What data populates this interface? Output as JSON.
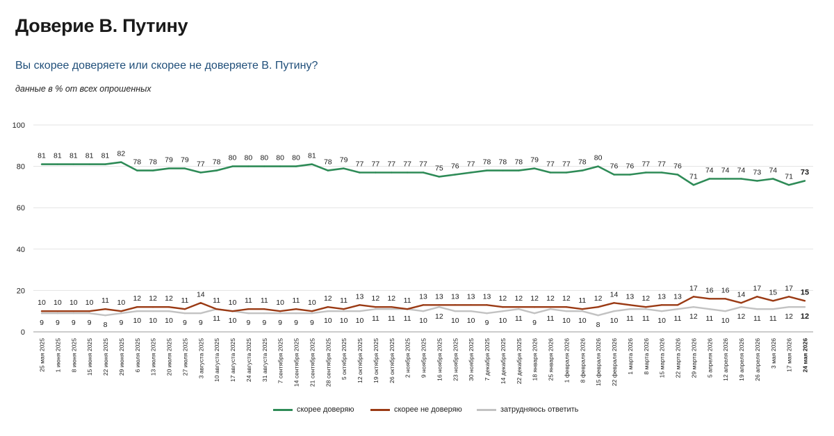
{
  "header": {
    "title": "Доверие В. Путину",
    "subtitle": "Вы скорее доверяете или скорее не доверяете В. Путину?",
    "note": "данные в % от всех опрошенных"
  },
  "colors": {
    "trust": "#2e8b57",
    "distrust": "#9a3a14",
    "undecided": "#c2c2c2"
  },
  "legend": {
    "trust": "скорее доверяю",
    "distrust": "скорее не доверяю",
    "undecided": "затрудняюсь ответить"
  },
  "chart_data": {
    "type": "line",
    "ylim": [
      0,
      100
    ],
    "yticks": [
      0,
      20,
      40,
      60,
      80,
      100
    ],
    "grid": true,
    "legend_position": "bottom",
    "categories": [
      "25 мая 2025",
      "1 июня 2025",
      "8 июня 2025",
      "15 июня 2025",
      "22 июня 2025",
      "29 июня 2025",
      "6 июля 2025",
      "13 июля 2025",
      "20 июля 2025",
      "27 июля 2025",
      "3 августа 2025",
      "10 августа 2025",
      "17 августа 2025",
      "24 августа 2025",
      "31 августа 2025",
      "7 сентября 2025",
      "14 сентября 2025",
      "21 сентября 2025",
      "28 сентября 2025",
      "5 октября 2025",
      "12 октября 2025",
      "19 октября 2025",
      "26 октября 2025",
      "2 ноября 2025",
      "9 ноября 2025",
      "16 ноября 2025",
      "23 ноября 2025",
      "30 ноября 2025",
      "7 декабря 2025",
      "14 декабря 2025",
      "22 декабря 2025",
      "18 января 2026",
      "25 января 2026",
      "1 февраля 2026",
      "8 февраля 2026",
      "15 февраля 2026",
      "22 февраля 2026",
      "1 марта 2026",
      "8 марта 2026",
      "15 марта 2026",
      "22 марта 2026",
      "29 марта 2026",
      "5 апреля 2026",
      "12 апреля 2026",
      "19 апреля 2026",
      "26 апреля 2026",
      "3 мая 2026",
      "17 мая 2026",
      "24 мая 2026"
    ],
    "series": [
      {
        "key": "trust",
        "name": "скорее доверяю",
        "values": [
          81,
          81,
          81,
          81,
          81,
          82,
          78,
          78,
          79,
          79,
          77,
          78,
          80,
          80,
          80,
          80,
          80,
          81,
          78,
          79,
          77,
          77,
          77,
          77,
          77,
          75,
          76,
          77,
          78,
          78,
          78,
          79,
          77,
          77,
          78,
          80,
          76,
          76,
          77,
          77,
          76,
          71,
          74,
          74,
          74,
          73,
          74,
          71,
          73
        ]
      },
      {
        "key": "distrust",
        "name": "скорее не доверяю",
        "values": [
          10,
          10,
          10,
          10,
          11,
          10,
          12,
          12,
          12,
          11,
          14,
          11,
          10,
          11,
          11,
          10,
          11,
          10,
          12,
          11,
          13,
          12,
          12,
          11,
          13,
          13,
          13,
          13,
          13,
          12,
          12,
          12,
          12,
          12,
          11,
          12,
          14,
          13,
          12,
          13,
          13,
          17,
          16,
          16,
          14,
          17,
          15,
          17,
          15
        ]
      },
      {
        "key": "undecided",
        "name": "затрудняюсь ответить",
        "values": [
          9,
          9,
          9,
          9,
          8,
          9,
          10,
          10,
          10,
          9,
          9,
          11,
          10,
          9,
          9,
          9,
          9,
          9,
          10,
          10,
          10,
          11,
          11,
          11,
          10,
          12,
          10,
          10,
          9,
          10,
          11,
          9,
          11,
          10,
          10,
          8,
          10,
          11,
          11,
          10,
          11,
          12,
          11,
          10,
          12,
          11,
          11,
          12,
          12
        ]
      }
    ]
  }
}
